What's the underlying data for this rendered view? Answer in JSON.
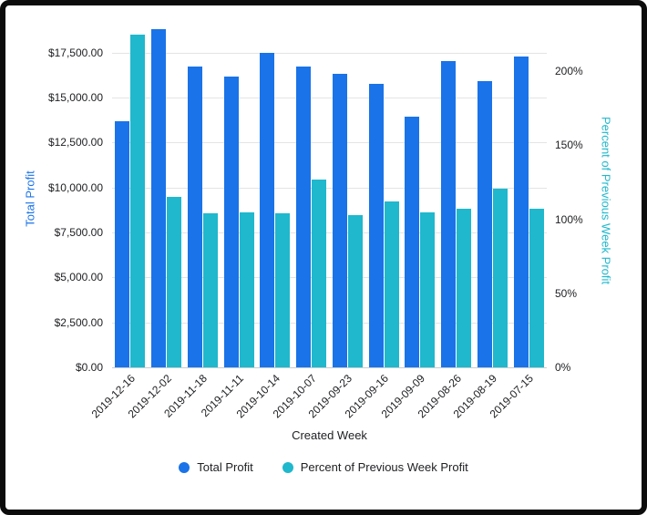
{
  "card": {
    "background": "#ffffff",
    "border_color": "#0c0c0c"
  },
  "chart_data": {
    "type": "bar",
    "title": "",
    "xlabel": "Created Week",
    "categories": [
      "2019-12-16",
      "2019-12-02",
      "2019-11-18",
      "2019-11-11",
      "2019-10-14",
      "2019-10-07",
      "2019-09-23",
      "2019-09-16",
      "2019-09-09",
      "2019-08-26",
      "2019-08-19",
      "2019-07-15"
    ],
    "series": [
      {
        "name": "Total Profit",
        "axis": "left",
        "color": "#1a73e8",
        "values": [
          13700,
          18800,
          16700,
          16150,
          17500,
          16700,
          16300,
          15750,
          13950,
          17000,
          15900,
          17300
        ]
      },
      {
        "name": "Percent of Previous Week Profit",
        "axis": "right",
        "color": "#1fb8cd",
        "values": [
          225,
          115,
          104,
          105,
          104,
          127,
          103,
          112,
          105,
          107,
          121,
          107
        ]
      }
    ],
    "left_axis": {
      "label": "Total Profit",
      "max": 19000,
      "tick_values": [
        0,
        2500,
        5000,
        7500,
        10000,
        12500,
        15000,
        17500
      ],
      "tick_labels": [
        "$0.00",
        "$2,500.00",
        "$5,000.00",
        "$7,500.00",
        "$10,000.00",
        "$12,500.00",
        "$15,000.00",
        "$17,500.00"
      ]
    },
    "right_axis": {
      "label": "Percent of Previous Week Profit",
      "max": 231,
      "tick_values": [
        0,
        50,
        100,
        150,
        200
      ],
      "tick_labels": [
        "0%",
        "50%",
        "100%",
        "150%",
        "200%"
      ]
    },
    "legend": [
      {
        "label": "Total Profit",
        "color": "#1a73e8"
      },
      {
        "label": "Percent of Previous Week Profit",
        "color": "#1fb8cd"
      }
    ],
    "grid": true,
    "legend_position": "bottom"
  }
}
